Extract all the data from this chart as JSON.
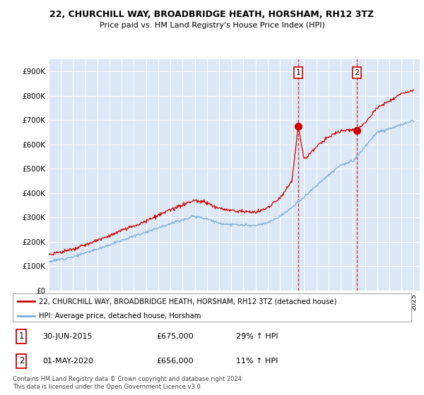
{
  "title_line1": "22, CHURCHILL WAY, BROADBRIDGE HEATH, HORSHAM, RH12 3TZ",
  "title_line2": "Price paid vs. HM Land Registry's House Price Index (HPI)",
  "background_color": "#ffffff",
  "plot_background": "#dce8f5",
  "grid_color": "#ffffff",
  "red_color": "#cc0000",
  "blue_color": "#7aaed6",
  "sale1_date": "30-JUN-2015",
  "sale1_price": 675000,
  "sale1_hpi": "29% ↑ HPI",
  "sale1_label": "1",
  "sale2_date": "01-MAY-2020",
  "sale2_price": 656000,
  "sale2_hpi": "11% ↑ HPI",
  "sale2_label": "2",
  "legend_red": "22, CHURCHILL WAY, BROADBRIDGE HEATH, HORSHAM, RH12 3TZ (detached house)",
  "legend_blue": "HPI: Average price, detached house, Horsham",
  "footer": "Contains HM Land Registry data © Crown copyright and database right 2024.\nThis data is licensed under the Open Government Licence v3.0.",
  "ylim_min": 0,
  "ylim_max": 950000,
  "yticks": [
    0,
    100000,
    200000,
    300000,
    400000,
    500000,
    600000,
    700000,
    800000,
    900000
  ],
  "ytick_labels": [
    "£0",
    "£100K",
    "£200K",
    "£300K",
    "£400K",
    "£500K",
    "£600K",
    "£700K",
    "£800K",
    "£900K"
  ],
  "sale1_x_year": 2015.5,
  "sale2_x_year": 2020.33,
  "xlim_min": 1995,
  "xlim_max": 2025.5
}
